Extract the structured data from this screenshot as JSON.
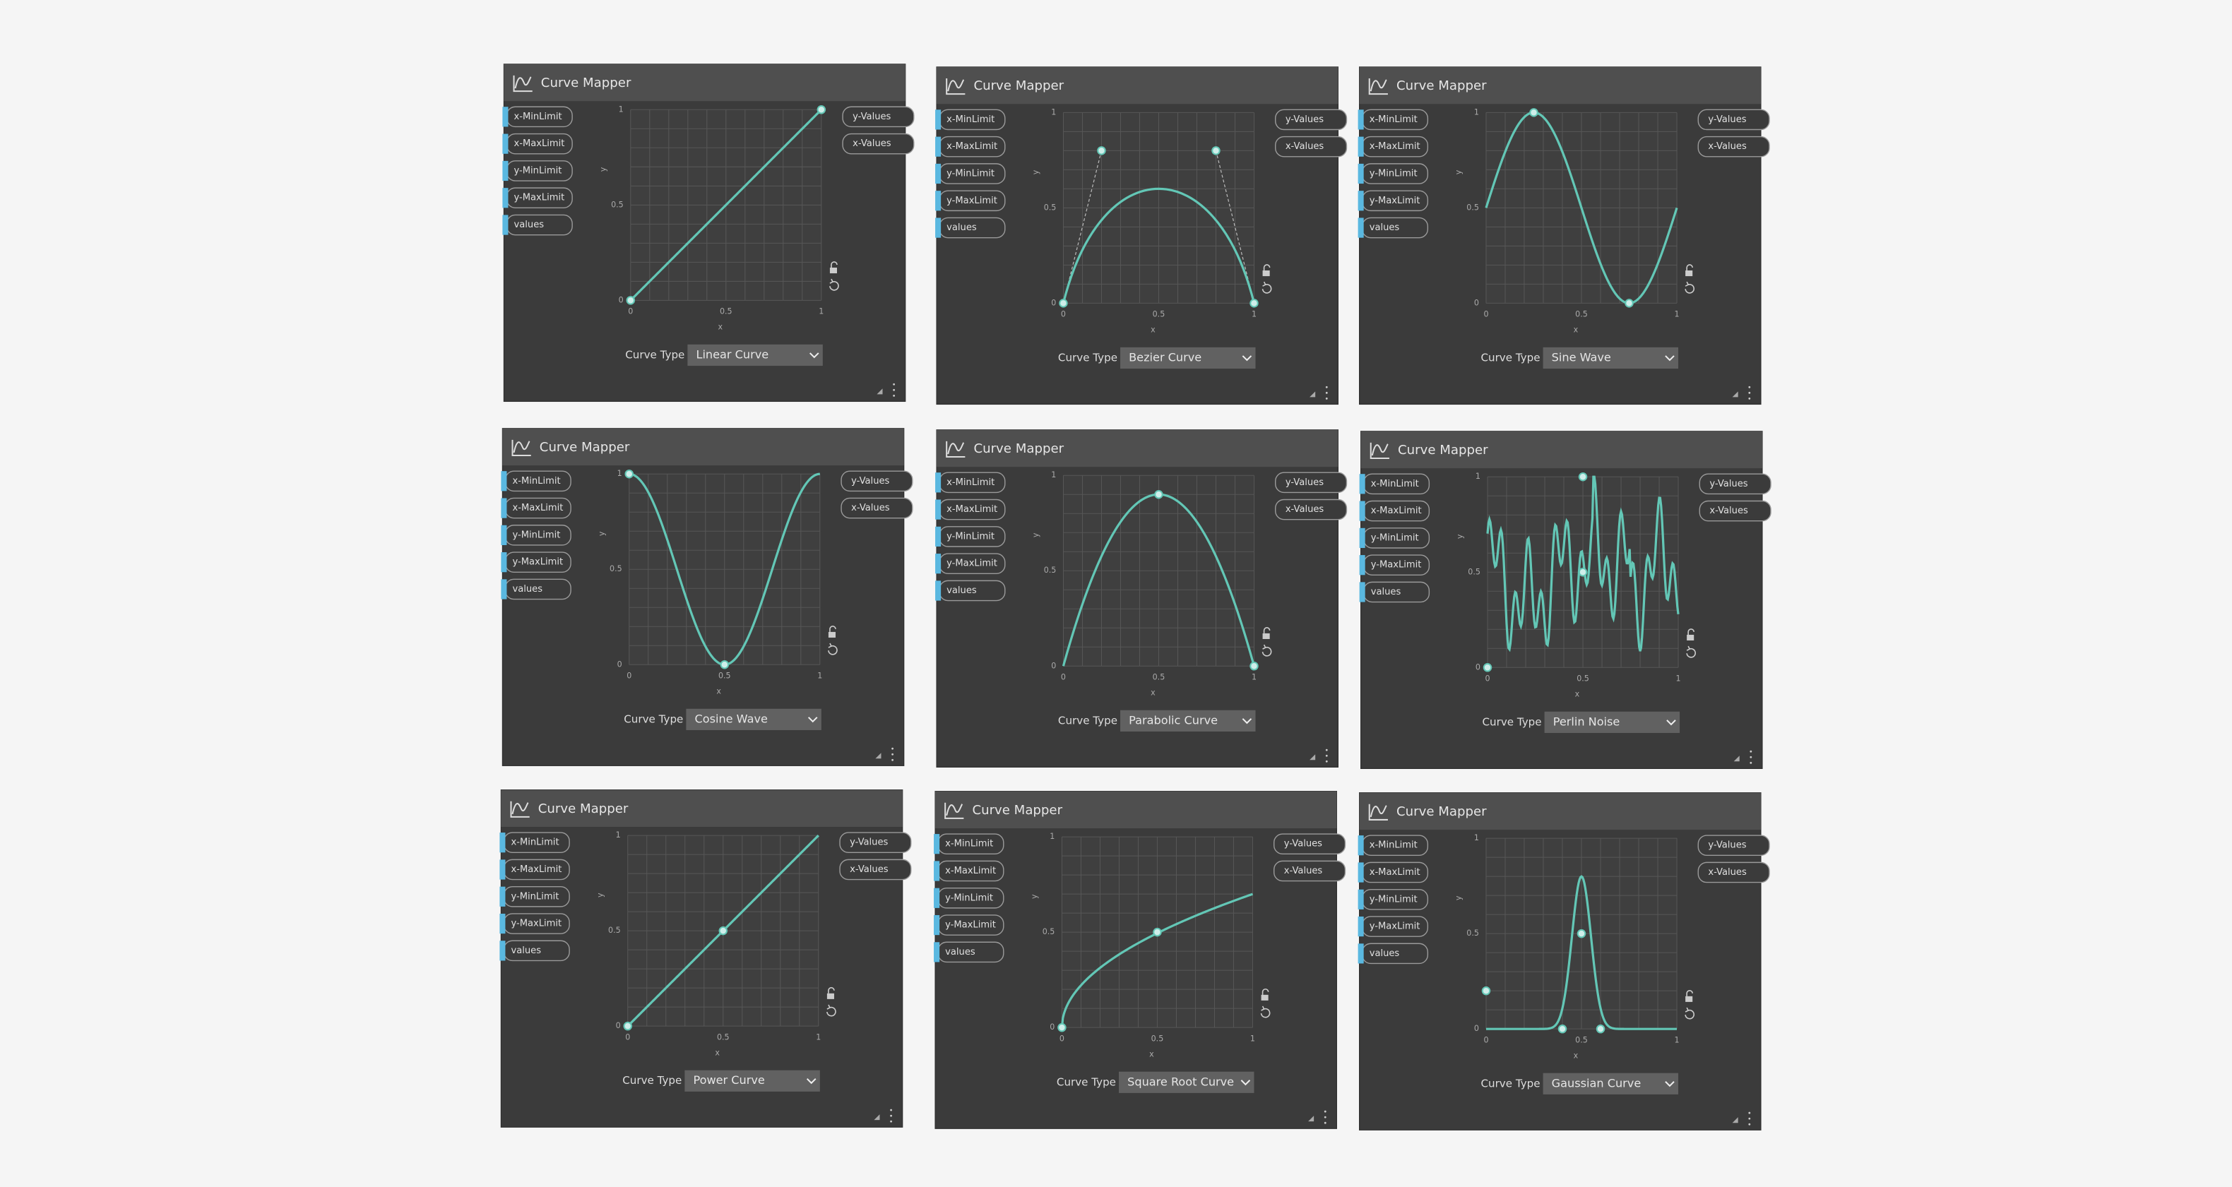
{
  "nodes": [
    {
      "title": "Curve Mapper",
      "inputs": [
        "x-MinLimit",
        "x-MaxLimit",
        "y-MinLimit",
        "y-MaxLimit",
        "values"
      ],
      "outputs": [
        "y-Values",
        "x-Values"
      ],
      "y_ticks": [
        "1",
        "0.5",
        "0"
      ],
      "x_ticks": [
        "0",
        "0.5",
        "1"
      ],
      "y_label": "y",
      "x_label": "x",
      "curve_type_label": "Curve Type",
      "curve_type": "Linear Curve"
    },
    {
      "title": "Curve Mapper",
      "inputs": [
        "x-MinLimit",
        "x-MaxLimit",
        "y-MinLimit",
        "y-MaxLimit",
        "values"
      ],
      "outputs": [
        "y-Values",
        "x-Values"
      ],
      "y_ticks": [
        "1",
        "0.5",
        "0"
      ],
      "x_ticks": [
        "0",
        "0.5",
        "1"
      ],
      "y_label": "y",
      "x_label": "x",
      "curve_type_label": "Curve Type",
      "curve_type": "Bezier Curve"
    },
    {
      "title": "Curve Mapper",
      "inputs": [
        "x-MinLimit",
        "x-MaxLimit",
        "y-MinLimit",
        "y-MaxLimit",
        "values"
      ],
      "outputs": [
        "y-Values",
        "x-Values"
      ],
      "y_ticks": [
        "1",
        "0.5",
        "0"
      ],
      "x_ticks": [
        "0",
        "0.5",
        "1"
      ],
      "y_label": "y",
      "x_label": "x",
      "curve_type_label": "Curve Type",
      "curve_type": "Sine Wave"
    },
    {
      "title": "Curve Mapper",
      "inputs": [
        "x-MinLimit",
        "x-MaxLimit",
        "y-MinLimit",
        "y-MaxLimit",
        "values"
      ],
      "outputs": [
        "y-Values",
        "x-Values"
      ],
      "y_ticks": [
        "1",
        "0.5",
        "0"
      ],
      "x_ticks": [
        "0",
        "0.5",
        "1"
      ],
      "y_label": "y",
      "x_label": "x",
      "curve_type_label": "Curve Type",
      "curve_type": "Cosine Wave"
    },
    {
      "title": "Curve Mapper",
      "inputs": [
        "x-MinLimit",
        "x-MaxLimit",
        "y-MinLimit",
        "y-MaxLimit",
        "values"
      ],
      "outputs": [
        "y-Values",
        "x-Values"
      ],
      "y_ticks": [
        "1",
        "0.5",
        "0"
      ],
      "x_ticks": [
        "0",
        "0.5",
        "1"
      ],
      "y_label": "y",
      "x_label": "x",
      "curve_type_label": "Curve Type",
      "curve_type": "Parabolic Curve"
    },
    {
      "title": "Curve Mapper",
      "inputs": [
        "x-MinLimit",
        "x-MaxLimit",
        "y-MinLimit",
        "y-MaxLimit",
        "values"
      ],
      "outputs": [
        "y-Values",
        "x-Values"
      ],
      "y_ticks": [
        "1",
        "0.5",
        "0"
      ],
      "x_ticks": [
        "0",
        "0.5",
        "1"
      ],
      "y_label": "y",
      "x_label": "x",
      "curve_type_label": "Curve Type",
      "curve_type": "Perlin Noise"
    },
    {
      "title": "Curve Mapper",
      "inputs": [
        "x-MinLimit",
        "x-MaxLimit",
        "y-MinLimit",
        "y-MaxLimit",
        "values"
      ],
      "outputs": [
        "y-Values",
        "x-Values"
      ],
      "y_ticks": [
        "1",
        "0.5",
        "0"
      ],
      "x_ticks": [
        "0",
        "0.5",
        "1"
      ],
      "y_label": "y",
      "x_label": "x",
      "curve_type_label": "Curve Type",
      "curve_type": "Power Curve"
    },
    {
      "title": "Curve Mapper",
      "inputs": [
        "x-MinLimit",
        "x-MaxLimit",
        "y-MinLimit",
        "y-MaxLimit",
        "values"
      ],
      "outputs": [
        "y-Values",
        "x-Values"
      ],
      "y_ticks": [
        "1",
        "0.5",
        "0"
      ],
      "x_ticks": [
        "0",
        "0.5",
        "1"
      ],
      "y_label": "y",
      "x_label": "x",
      "curve_type_label": "Curve Type",
      "curve_type": "Square Root Curve"
    },
    {
      "title": "Curve Mapper",
      "inputs": [
        "x-MinLimit",
        "x-MaxLimit",
        "y-MinLimit",
        "y-MaxLimit",
        "values"
      ],
      "outputs": [
        "y-Values",
        "x-Values"
      ],
      "y_ticks": [
        "1",
        "0.5",
        "0"
      ],
      "x_ticks": [
        "0",
        "0.5",
        "1"
      ],
      "y_label": "y",
      "x_label": "x",
      "curve_type_label": "Curve Type",
      "curve_type": "Gaussian Curve"
    }
  ]
}
